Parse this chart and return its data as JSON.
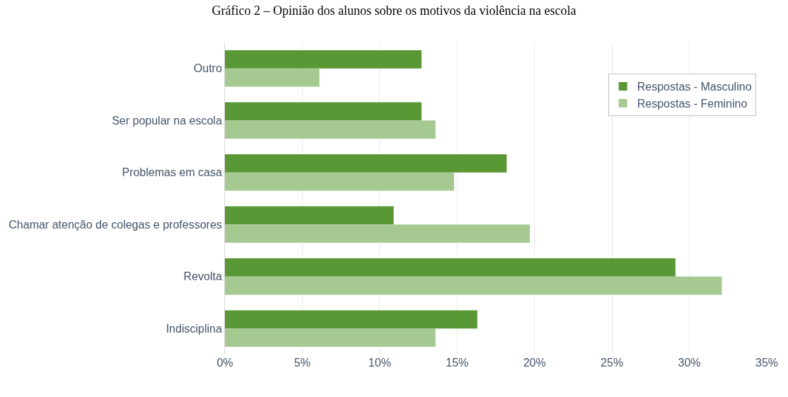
{
  "chart_data": {
    "type": "bar",
    "orientation": "horizontal",
    "title": "Gráfico 2 – Opinião dos alunos sobre os motivos da violência na escola",
    "categories": [
      "Outro",
      "Ser popular na escola",
      "Problemas em casa",
      "Chamar atenção de colegas e professores",
      "Revolta",
      "Indisciplina"
    ],
    "series": [
      {
        "name": "Respostas - Masculino",
        "color": "#5a9735",
        "values": [
          12.7,
          12.7,
          18.2,
          10.9,
          29.1,
          16.3
        ]
      },
      {
        "name": "Respostas - Feminino",
        "color": "#a5c990",
        "values": [
          6.1,
          13.6,
          14.8,
          19.7,
          32.1,
          13.6
        ]
      }
    ],
    "xlim": [
      0,
      35
    ],
    "xticks": [
      {
        "value": 0,
        "label": "0%"
      },
      {
        "value": 5,
        "label": "5%"
      },
      {
        "value": 10,
        "label": "10%"
      },
      {
        "value": 15,
        "label": "15%"
      },
      {
        "value": 20,
        "label": "20%"
      },
      {
        "value": 25,
        "label": "25%"
      },
      {
        "value": 30,
        "label": "30%"
      },
      {
        "value": 35,
        "label": "35%"
      }
    ],
    "grid": "x",
    "legend": "top right"
  }
}
